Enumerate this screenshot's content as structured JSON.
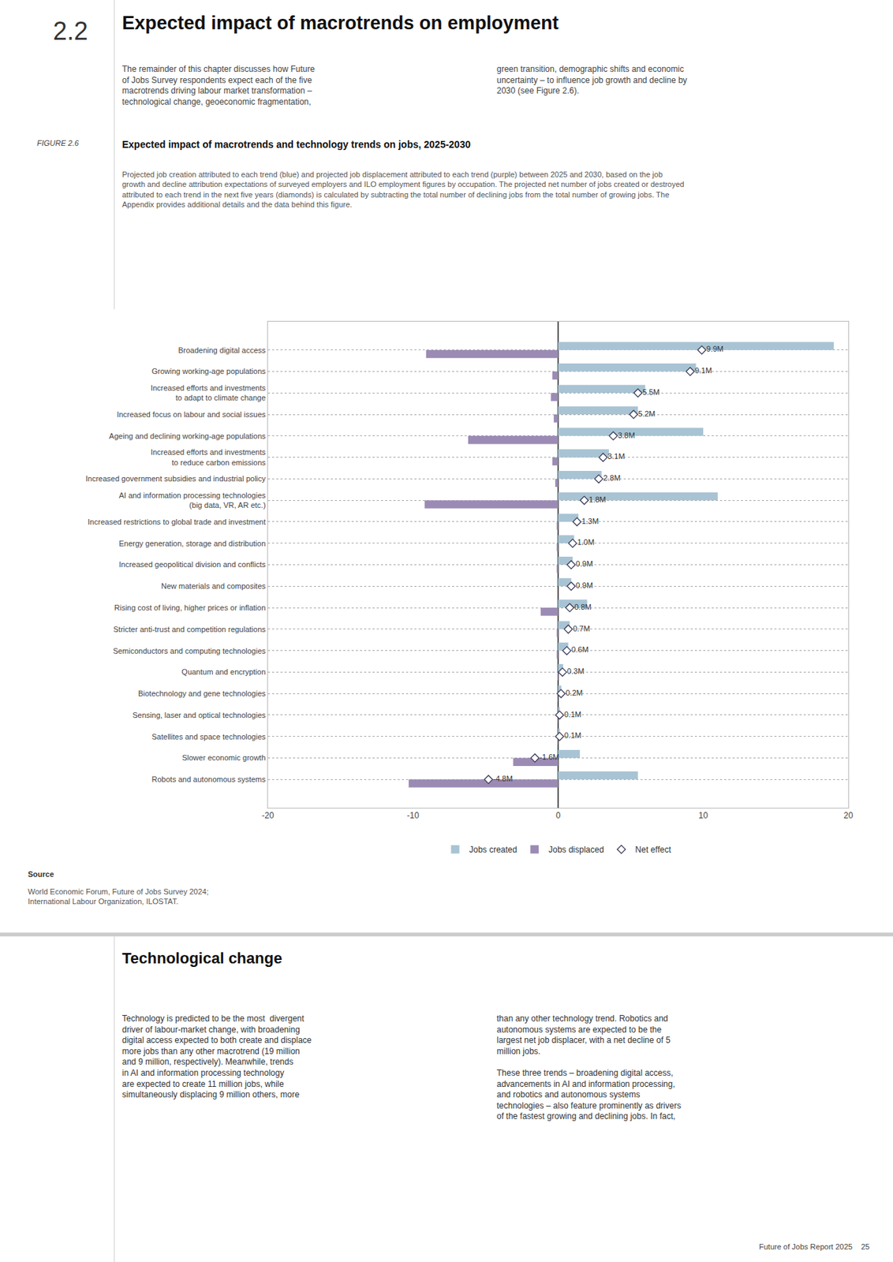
{
  "chart_data": {
    "type": "bar",
    "orientation": "horizontal",
    "title": "Expected impact of macrotrends and technology trends on jobs, 2025-2030",
    "subtitle": "Projected job creation attributed to each trend (blue) and projected job displacement attributed to each trend (purple) between 2025 and 2030, based on the job growth and decline attribution expectations of surveyed employers and ILO employment figures by occupation. The projected net number of jobs created or destroyed attributed to each trend in the next five years (diamonds) is calculated by subtracting the total number of declining jobs from the total number of growing jobs. The Appendix provides additional details and the data behind this figure.",
    "annotations": [
      "2.2",
      "Expected impact of macrotrends on employment",
      "The remainder of this chapter discusses how Future\nof Jobs Survey respondents expect each of the five\nmacrotrends driving labour market transformation –\ntechnological change, geoeconomic fragmentation,",
      "green transition, demographic shifts and economic\nuncertainty – to influence job growth and decline by\n2030 (see Figure 2.6).",
      "FIGURE 2.6",
      "Source",
      "World Economic Forum, Future of Jobs Survey 2024;\nInternational Labour Organization, ILOSTAT.",
      "Technological change",
      "Technology is predicted to be the most  divergent\ndriver of labour-market change, with broadening\ndigital access expected to both create and displace\nmore jobs than any other macrotrend (19 million\nand 9 million, respectively). Meanwhile, trends\nin AI and information processing technology\nare expected to create 11 million jobs, while\nsimultaneously displacing 9 million others, more",
      "than any other technology trend. Robotics and\nautonomous systems are expected to be the\nlargest net job displacer, with a net decline of 5\nmillion jobs.\n\nThese three trends – broadening digital access,\nadvancements in AI and information processing,\nand robotics and autonomous systems\ntechnologies – also feature prominently as drivers\nof the fastest growing and declining jobs. In fact,",
      "Future of Jobs Report 2025    25"
    ],
    "categories": [
      "Broadening digital access",
      "Growing working-age populations",
      "Increased efforts and investments\nto adapt to climate change",
      "Increased focus on labour and social issues",
      "Ageing and declining working-age populations",
      "Increased efforts and investments\nto reduce carbon emissions",
      "Increased government subsidies and industrial policy",
      "AI and information processing technologies\n(big data, VR, AR etc.)",
      "Increased restrictions to global trade and investment",
      "Energy generation, storage and distribution",
      "Increased geopolitical division and conflicts",
      "New materials and composites",
      "Rising cost of living, higher prices or inflation",
      "Stricter anti-trust and competition regulations",
      "Semiconductors and computing technologies",
      "Quantum and encryption",
      "Biotechnology and gene technologies",
      "Sensing, laser and optical technologies",
      "Satellites and space technologies",
      "Slower economic growth",
      "Robots and autonomous systems"
    ],
    "series": [
      {
        "name": "Jobs created",
        "color": "#a8c4d4",
        "values": [
          19.0,
          9.5,
          6.0,
          5.5,
          10.0,
          3.5,
          3.0,
          11.0,
          1.4,
          1.1,
          1.0,
          0.9,
          2.0,
          0.8,
          0.7,
          0.35,
          0.22,
          0.12,
          0.12,
          1.5,
          5.5
        ]
      },
      {
        "name": "Jobs displaced",
        "color": "#9b8bb4",
        "values": [
          -9.1,
          -0.4,
          -0.5,
          -0.3,
          -6.2,
          -0.4,
          -0.2,
          -9.2,
          -0.1,
          -0.1,
          -0.1,
          0.0,
          -1.2,
          -0.1,
          -0.1,
          -0.05,
          -0.02,
          -0.02,
          -0.02,
          -3.1,
          -10.3
        ]
      },
      {
        "name": "Net effect",
        "type": "scatter",
        "marker": "diamond",
        "data_labels": true,
        "values": [
          9.9,
          9.1,
          5.5,
          5.2,
          3.8,
          3.1,
          2.8,
          1.8,
          1.3,
          1.0,
          0.9,
          0.9,
          0.8,
          0.7,
          0.6,
          0.3,
          0.2,
          0.1,
          0.1,
          -1.6,
          -4.8
        ],
        "value_labels": [
          "9.9M",
          "9.1M",
          "5.5M",
          "5.2M",
          "3.8M",
          "3.1M",
          "2.8M",
          "1.8M",
          "1.3M",
          "1.0M",
          "0.9M",
          "0.9M",
          "0.8M",
          "0.7M",
          "0.6M",
          "0.3M",
          "0.2M",
          "0.1M",
          "0.1M",
          "-1.6M",
          "-4.8M"
        ]
      }
    ],
    "xlim": [
      -20,
      20
    ],
    "xticks": [
      -20,
      -10,
      0,
      10,
      20
    ],
    "grid": "y"
  }
}
